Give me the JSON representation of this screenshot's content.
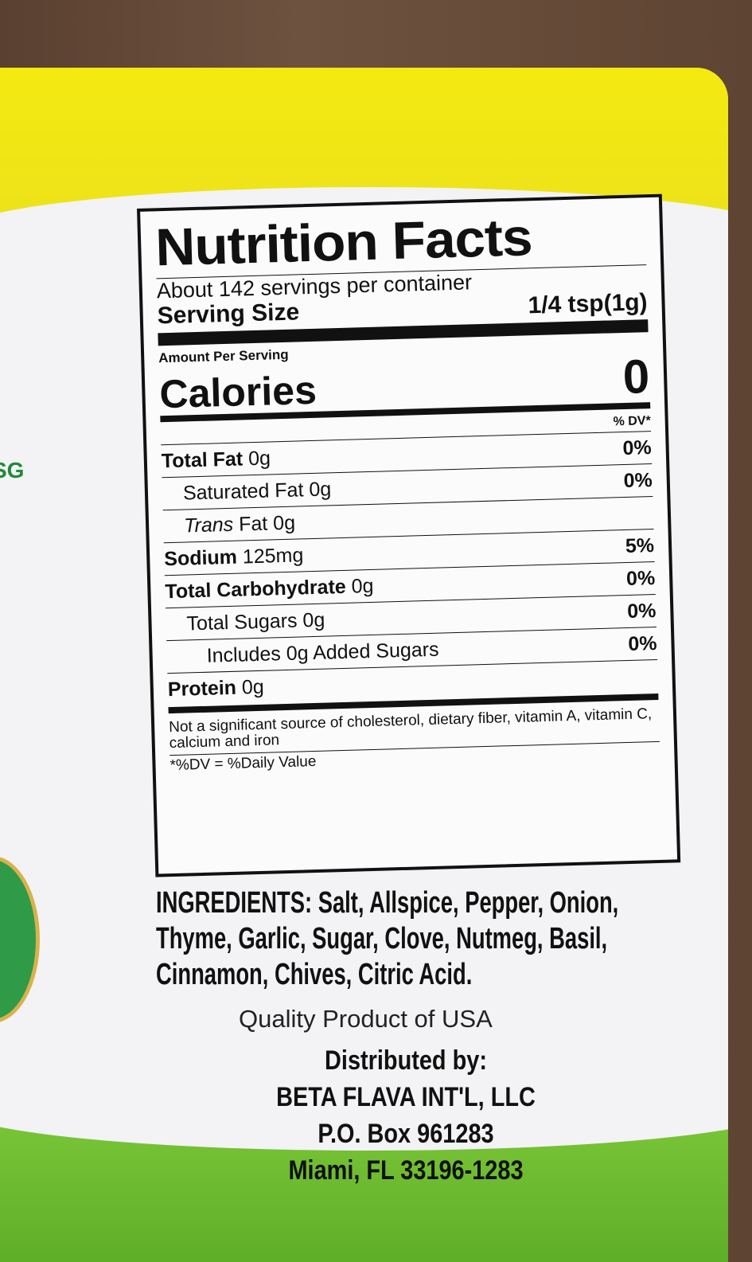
{
  "brand_colors": {
    "yellow": "#f4ea10",
    "green": "#6cbc30",
    "badge_green": "#2f9a48"
  },
  "side_text": "SG",
  "nutrition": {
    "title": "Nutrition Facts",
    "servings_per_container": "About 142 servings per container",
    "serving_size_label": "Serving Size",
    "serving_size_value": "1/4 tsp(1g)",
    "amount_per_serving": "Amount Per Serving",
    "calories_label": "Calories",
    "calories_value": "0",
    "dv_header": "% DV*",
    "rows": [
      {
        "name": "Total Fat",
        "amount": "0g",
        "dv": "0%"
      },
      {
        "name": "Saturated Fat",
        "amount": "0g",
        "dv": "0%"
      },
      {
        "name": "Trans",
        "name_suffix": "Fat",
        "amount": "0g",
        "dv": ""
      },
      {
        "name": "Sodium",
        "amount": "125mg",
        "dv": "5%"
      },
      {
        "name": "Total Carbohydrate",
        "amount": "0g",
        "dv": "0%"
      },
      {
        "name": "Total Sugars",
        "amount": "0g",
        "dv": "0%"
      },
      {
        "name": "Includes 0g Added Sugars",
        "amount": "",
        "dv": "0%"
      },
      {
        "name": "Protein",
        "amount": "0g",
        "dv": ""
      }
    ],
    "footnote": "Not a significant source of cholesterol, dietary fiber, vitamin A, vitamin C, calcium and iron",
    "dv_note": "*%DV = %Daily Value"
  },
  "ingredients": {
    "label": "INGREDIENTS:",
    "text": "Salt, Allspice, Pepper, Onion, Thyme, Garlic, Sugar, Clove, Nutmeg, Basil, Cinnamon, Chives, Citric Acid."
  },
  "origin": "Quality Product of USA",
  "distributor": {
    "heading": "Distributed by:",
    "name": "BETA FLAVA INT'L, LLC",
    "address1": "P.O. Box 961283",
    "address2": "Miami, FL 33196-1283"
  }
}
